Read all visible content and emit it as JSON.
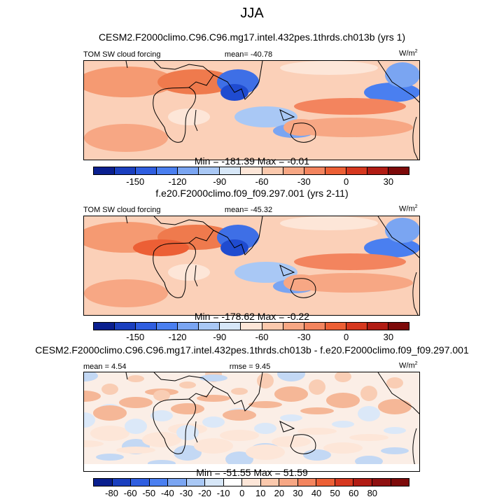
{
  "figure": {
    "title": "JJA"
  },
  "colors": {
    "palette_14": [
      "#0a1f8f",
      "#1a3fbf",
      "#2f5ee0",
      "#4a7ff0",
      "#7aa5f2",
      "#a9c8f5",
      "#d7e7f8",
      "#fde6d8",
      "#fbc9ad",
      "#f7a784",
      "#f3845e",
      "#ec5f35",
      "#d6381f",
      "#b11c14",
      "#7d0a0a"
    ],
    "palette_17": [
      "#0a1f8f",
      "#1a3fbf",
      "#2f5ee0",
      "#4a7ff0",
      "#7aa5f2",
      "#a9c8f5",
      "#d7e7f8",
      "#ffffff",
      "#fde6d8",
      "#fbc9ad",
      "#f7a784",
      "#f3845e",
      "#ec5f35",
      "#d6381f",
      "#b11c14",
      "#8f1010",
      "#7d0a0a"
    ]
  },
  "chart_data": [
    {
      "type": "heatmap",
      "title": "CESM2.F2000climo.C96.C96.mg17.intel.432pes.1thrds.ch013b (yrs 1)",
      "variable": "TOM SW cloud forcing",
      "mean_label": "mean= -40.78",
      "units": "W/m",
      "units_sup": "2",
      "min_max_label": "Min = -181.39 Max =  -0.01",
      "colorbar_ticks": [
        "-150",
        "-120",
        "-90",
        "-60",
        "-30",
        "0",
        "30"
      ],
      "mean": -40.78,
      "min": -181.39,
      "max": -0.01
    },
    {
      "type": "heatmap",
      "title": "f.e20.F2000climo.f09_f09.297.001 (yrs 2-11)",
      "variable": "TOM SW cloud forcing",
      "mean_label": "mean= -45.32",
      "units": "W/m",
      "units_sup": "2",
      "min_max_label": "Min = -178.62 Max =  -0.22",
      "colorbar_ticks": [
        "-150",
        "-120",
        "-90",
        "-60",
        "-30",
        "0",
        "30"
      ],
      "mean": -45.32,
      "min": -178.62,
      "max": -0.22
    },
    {
      "type": "heatmap",
      "title": "CESM2.F2000climo.C96.C96.mg17.intel.432pes.1thrds.ch013b - f.e20.F2000climo.f09_f09.297.001",
      "mean_label": "mean =   4.54",
      "rmse_label": "rmse =   9.45",
      "units": "W/m",
      "units_sup": "2",
      "min_max_label": "Min = -51.55 Max =  51.59",
      "colorbar_ticks": [
        "-80",
        "-60",
        "-50",
        "-40",
        "-30",
        "-20",
        "-10",
        "0",
        "10",
        "20",
        "30",
        "40",
        "50",
        "60",
        "80"
      ],
      "mean": 4.54,
      "rmse": 9.45,
      "min": -51.55,
      "max": 51.59
    }
  ]
}
